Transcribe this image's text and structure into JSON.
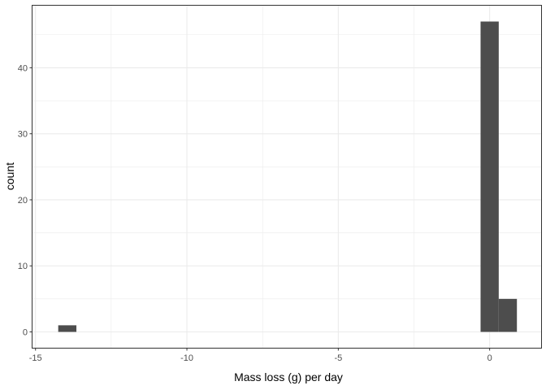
{
  "chart_data": {
    "type": "bar",
    "subtype": "histogram",
    "title": "",
    "xlabel": "Mass loss (g) per day",
    "ylabel": "count",
    "xlim": [
      -15.1,
      1.7
    ],
    "ylim": [
      -2.4,
      49.4
    ],
    "x_ticks": [
      -15,
      -10,
      -5,
      0
    ],
    "x_tick_labels": [
      "-15",
      "-10",
      "-5",
      "0"
    ],
    "y_ticks": [
      0,
      10,
      20,
      30,
      40
    ],
    "y_tick_labels": [
      "0",
      "10",
      "20",
      "30",
      "40"
    ],
    "bins": [
      {
        "x0": -14.25,
        "x1": -13.65,
        "count": 1
      },
      {
        "x0": -0.3,
        "x1": 0.3,
        "count": 47
      },
      {
        "x0": 0.3,
        "x1": 0.9,
        "count": 5
      }
    ],
    "grid": true,
    "bar_color": "#4d4d4d",
    "grid_color": "#ebebeb",
    "panel_border_color": "#333333"
  }
}
